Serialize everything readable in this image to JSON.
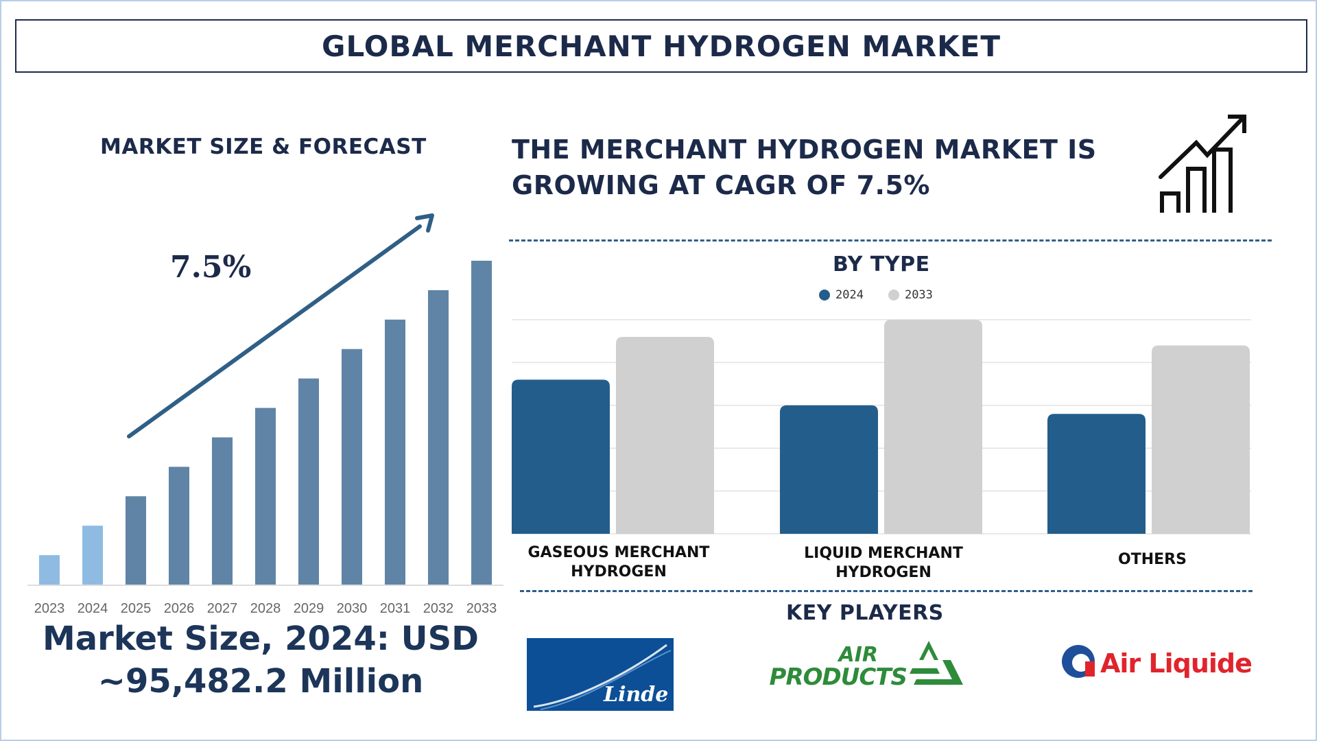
{
  "title": "GLOBAL MERCHANT HYDROGEN MARKET",
  "left_panel": {
    "heading": "MARKET SIZE & FORECAST",
    "cagr_label": "7.5%",
    "market_size_line1": "Market Size, 2024: USD",
    "market_size_line2": "~95,482.2 Million"
  },
  "right_panel": {
    "growth_line1": "THE MERCHANT HYDROGEN MARKET IS",
    "growth_line2": "GROWING AT CAGR OF 7.5%",
    "growth_icon": "growth-chart-icon",
    "by_type_heading": "BY TYPE",
    "key_players_heading": "KEY PLAYERS",
    "key_players": [
      "Linde",
      "AIR PRODUCTS",
      "Air Liquide"
    ]
  },
  "colors": {
    "navy": "#1c2a4a",
    "bar_highlight": "#8fbbe3",
    "bar_forecast": "#5f84a6",
    "series_2024": "#235d8b",
    "series_2033": "#d0d0d0",
    "arrow": "#2f5f86",
    "air_products_green": "#2e8b3a",
    "air_liquide_red": "#e0242c",
    "air_liquide_blue": "#1f4e9a"
  },
  "chart_data": [
    {
      "type": "bar",
      "categories": [
        "2023",
        "2024",
        "2025",
        "2026",
        "2027",
        "2028",
        "2029",
        "2030",
        "2031",
        "2032",
        "2033"
      ],
      "values": [
        1.0,
        2.0,
        3.0,
        4.0,
        5.0,
        6.0,
        7.0,
        8.0,
        9.0,
        10.0,
        11.0
      ],
      "title": "MARKET SIZE & FORECAST",
      "annotation": "7.5%",
      "highlighted": [
        "2023",
        "2024"
      ]
    },
    {
      "type": "bar",
      "title": "BY TYPE",
      "categories": [
        "GASEOUS MERCHANT HYDROGEN",
        "LIQUID MERCHANT HYDROGEN",
        "OTHERS"
      ],
      "category_lines": [
        [
          "GASEOUS MERCHANT",
          "HYDROGEN"
        ],
        [
          "LIQUID MERCHANT",
          "HYDROGEN"
        ],
        [
          "OTHERS"
        ]
      ],
      "series": [
        {
          "name": "2024",
          "values": [
            3.6,
            3.0,
            2.8
          ]
        },
        {
          "name": "2033",
          "values": [
            4.6,
            5.0,
            4.4
          ]
        }
      ],
      "ylim": [
        0,
        5
      ],
      "grid": true,
      "legend": "top-center"
    }
  ]
}
